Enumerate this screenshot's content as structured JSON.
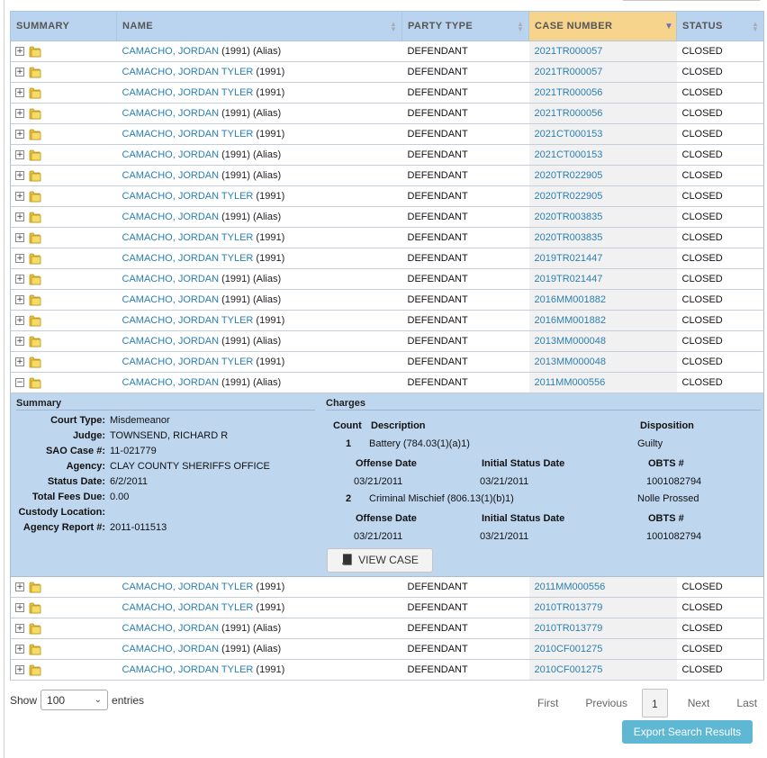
{
  "table": {
    "headers": {
      "summary": "SUMMARY",
      "name": "NAME",
      "party_type": "PARTY TYPE",
      "case_number": "CASE NUMBER",
      "status": "STATUS"
    },
    "rows_before": [
      {
        "name": "CAMACHO, JORDAN",
        "extra": " (1991) (Alias)",
        "party": "DEFENDANT",
        "case": "2021TR000057",
        "status": "CLOSED"
      },
      {
        "name": "CAMACHO, JORDAN TYLER",
        "extra": " (1991)",
        "party": "DEFENDANT",
        "case": "2021TR000057",
        "status": "CLOSED"
      },
      {
        "name": "CAMACHO, JORDAN TYLER",
        "extra": " (1991)",
        "party": "DEFENDANT",
        "case": "2021TR000056",
        "status": "CLOSED"
      },
      {
        "name": "CAMACHO, JORDAN",
        "extra": " (1991) (Alias)",
        "party": "DEFENDANT",
        "case": "2021TR000056",
        "status": "CLOSED"
      },
      {
        "name": "CAMACHO, JORDAN TYLER",
        "extra": " (1991)",
        "party": "DEFENDANT",
        "case": "2021CT000153",
        "status": "CLOSED"
      },
      {
        "name": "CAMACHO, JORDAN",
        "extra": " (1991) (Alias)",
        "party": "DEFENDANT",
        "case": "2021CT000153",
        "status": "CLOSED"
      },
      {
        "name": "CAMACHO, JORDAN",
        "extra": " (1991) (Alias)",
        "party": "DEFENDANT",
        "case": "2020TR022905",
        "status": "CLOSED"
      },
      {
        "name": "CAMACHO, JORDAN TYLER",
        "extra": " (1991)",
        "party": "DEFENDANT",
        "case": "2020TR022905",
        "status": "CLOSED"
      },
      {
        "name": "CAMACHO, JORDAN",
        "extra": " (1991) (Alias)",
        "party": "DEFENDANT",
        "case": "2020TR003835",
        "status": "CLOSED"
      },
      {
        "name": "CAMACHO, JORDAN TYLER",
        "extra": " (1991)",
        "party": "DEFENDANT",
        "case": "2020TR003835",
        "status": "CLOSED"
      },
      {
        "name": "CAMACHO, JORDAN TYLER",
        "extra": " (1991)",
        "party": "DEFENDANT",
        "case": "2019TR021447",
        "status": "CLOSED"
      },
      {
        "name": "CAMACHO, JORDAN",
        "extra": " (1991) (Alias)",
        "party": "DEFENDANT",
        "case": "2019TR021447",
        "status": "CLOSED"
      },
      {
        "name": "CAMACHO, JORDAN",
        "extra": " (1991) (Alias)",
        "party": "DEFENDANT",
        "case": "2016MM001882",
        "status": "CLOSED"
      },
      {
        "name": "CAMACHO, JORDAN TYLER",
        "extra": " (1991)",
        "party": "DEFENDANT",
        "case": "2016MM001882",
        "status": "CLOSED"
      },
      {
        "name": "CAMACHO, JORDAN",
        "extra": " (1991) (Alias)",
        "party": "DEFENDANT",
        "case": "2013MM000048",
        "status": "CLOSED"
      },
      {
        "name": "CAMACHO, JORDAN TYLER",
        "extra": " (1991)",
        "party": "DEFENDANT",
        "case": "2013MM000048",
        "status": "CLOSED"
      }
    ],
    "expanded_row": {
      "name": "CAMACHO, JORDAN",
      "extra": " (1991) (Alias)",
      "party": "DEFENDANT",
      "case": "2011MM000556",
      "status": "CLOSED"
    },
    "rows_after": [
      {
        "name": "CAMACHO, JORDAN TYLER",
        "extra": " (1991)",
        "party": "DEFENDANT",
        "case": "2011MM000556",
        "status": "CLOSED"
      },
      {
        "name": "CAMACHO, JORDAN TYLER",
        "extra": " (1991)",
        "party": "DEFENDANT",
        "case": "2010TR013779",
        "status": "CLOSED"
      },
      {
        "name": "CAMACHO, JORDAN",
        "extra": " (1991) (Alias)",
        "party": "DEFENDANT",
        "case": "2010TR013779",
        "status": "CLOSED"
      },
      {
        "name": "CAMACHO, JORDAN",
        "extra": " (1991) (Alias)",
        "party": "DEFENDANT",
        "case": "2010CF001275",
        "status": "CLOSED"
      },
      {
        "name": "CAMACHO, JORDAN TYLER",
        "extra": " (1991)",
        "party": "DEFENDANT",
        "case": "2010CF001275",
        "status": "CLOSED"
      }
    ]
  },
  "detail": {
    "summary_title": "Summary",
    "summary_fields": [
      {
        "key": "Court Type:",
        "value": "Misdemeanor"
      },
      {
        "key": "Judge:",
        "value": "TOWNSEND, RICHARD R"
      },
      {
        "key": "SAO Case #:",
        "value": "11-021779"
      },
      {
        "key": "Agency:",
        "value": "CLAY COUNTY SHERIFFS OFFICE"
      },
      {
        "key": "Status Date:",
        "value": "6/2/2011"
      },
      {
        "key": "Total Fees Due:",
        "value": "0.00"
      },
      {
        "key": "Custody Location:",
        "value": ""
      },
      {
        "key": "Agency Report #:",
        "value": "2011-011513"
      }
    ],
    "charges_title": "Charges",
    "charges_headers": {
      "count": "Count",
      "description": "Description",
      "disposition": "Disposition"
    },
    "charge_sub_headers": {
      "offense_date": "Offense Date",
      "initial_status_date": "Initial Status Date",
      "obts": "OBTS #"
    },
    "charges": [
      {
        "count": "1",
        "description": "Battery (784.03(1)(a)1)",
        "disposition": "Guilty",
        "offense_date": "03/21/2011",
        "initial_status_date": "03/21/2011",
        "obts": "1001082794"
      },
      {
        "count": "2",
        "description": "Criminal Mischief (806.13(1)(b)1)",
        "disposition": "Nolle Prossed",
        "offense_date": "03/21/2011",
        "initial_status_date": "03/21/2011",
        "obts": "1001082794"
      }
    ],
    "view_case_label": "VIEW CASE"
  },
  "footer": {
    "show_label": "Show",
    "entries_value": "100",
    "entries_label": "entries",
    "pager": {
      "first": "First",
      "previous": "Previous",
      "current": "1",
      "next": "Next",
      "last": "Last"
    },
    "export_label": "Export Search Results"
  },
  "colors": {
    "header_bg": "#bad4ef",
    "sorted_header_bg": "#f7d48b",
    "link": "#2a7fb4",
    "detail_bg": "#bfd6ef",
    "export_bg": "#5fb8d3"
  }
}
